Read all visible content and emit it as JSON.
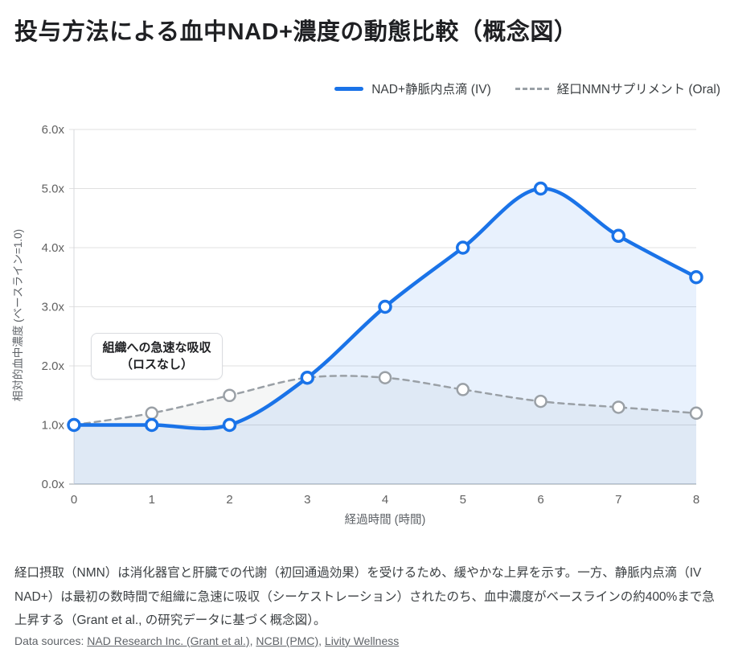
{
  "title": "投与方法による血中NAD+濃度の動態比較（概念図）",
  "legend": {
    "items": [
      {
        "label": "NAD+静脈内点滴 (IV)",
        "style": "solid"
      },
      {
        "label": "経口NMNサプリメント (Oral)",
        "style": "dashed"
      }
    ]
  },
  "chart_data": {
    "type": "line",
    "x": [
      0,
      1,
      2,
      3,
      4,
      5,
      6,
      7,
      8
    ],
    "series": [
      {
        "name": "NAD+静脈内点滴 (IV)",
        "values": [
          1.0,
          1.0,
          1.0,
          1.8,
          3.0,
          4.0,
          5.0,
          4.2,
          3.5
        ],
        "color": "#1a73e8",
        "fill": "rgba(26,115,232,0.10)",
        "dash": false
      },
      {
        "name": "経口NMNサプリメント (Oral)",
        "values": [
          1.0,
          1.2,
          1.5,
          1.8,
          1.8,
          1.6,
          1.4,
          1.3,
          1.2
        ],
        "color": "#9aa0a6",
        "fill": "rgba(128,134,139,0.08)",
        "dash": true
      }
    ],
    "xlabel": "経過時間 (時間)",
    "ylabel": "相対的血中濃度 (ベースライン=1.0)",
    "ylim": [
      0,
      6
    ],
    "yticks": [
      0,
      1,
      2,
      3,
      4,
      5,
      6
    ],
    "ytick_suffix": "x",
    "grid": true,
    "legend_position": "top-right",
    "colors": {
      "gridline": "#e0e0e0",
      "axis_line": "#9aa0a6",
      "left_axis": "#d7d9dd",
      "tick_text": "#616161",
      "axis_title_text": "#5f6368"
    }
  },
  "annotation": {
    "line1": "組織への急速な吸収",
    "line2": "（ロスなし）"
  },
  "footer": {
    "paragraph": "経口摂取（NMN）は消化器官と肝臓での代謝（初回通過効果）を受けるため、緩やかな上昇を示す。一方、静脈内点滴（IV NAD+）は最初の数時間で組織に急速に吸収（シーケストレーション）されたのち、血中濃度がベースラインの約400%まで急上昇する（Grant et al., の研究データに基づく概念図）。",
    "sources_label": "Data sources:",
    "sources_separator": ", ",
    "sources": [
      {
        "text": "NAD Research Inc. (Grant et al.)"
      },
      {
        "text": "NCBI (PMC)"
      },
      {
        "text": "Livity Wellness"
      }
    ]
  }
}
